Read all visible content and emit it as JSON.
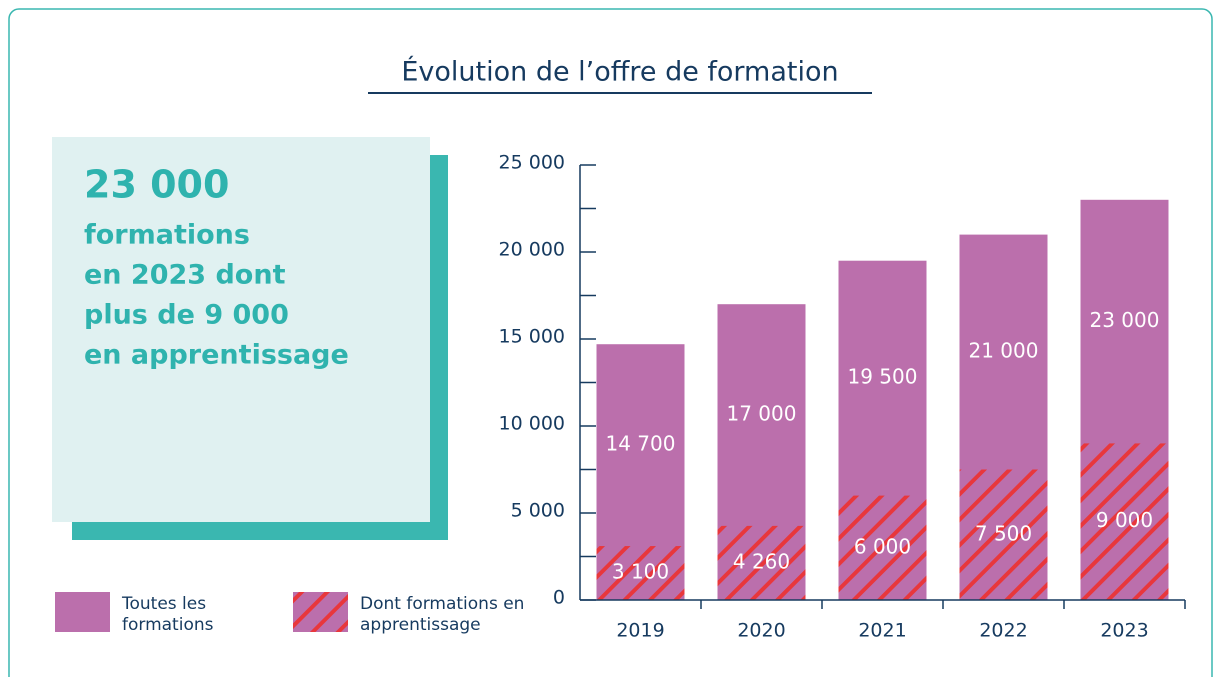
{
  "chart_data": {
    "type": "bar",
    "title": "Évolution de l’offre de formation",
    "callout": {
      "value": "23 000",
      "lines": [
        "formations",
        "en 2023 dont",
        "plus de 9 000",
        "en apprentissage"
      ]
    },
    "categories": [
      "2019",
      "2020",
      "2021",
      "2022",
      "2023"
    ],
    "series": [
      {
        "name": "Toutes les formations",
        "color": "#bb6fac",
        "values": [
          14700,
          17000,
          19500,
          21000,
          23000
        ],
        "value_labels": [
          "14 700",
          "17 000",
          "19 500",
          "21 000",
          "23 000"
        ]
      },
      {
        "name": "Dont formations en apprentissage",
        "color": "#e8373c",
        "values": [
          3100,
          4260,
          6000,
          7500,
          9000
        ],
        "value_labels": [
          "3 100",
          "4 260",
          "6 000",
          "7 500",
          "9 000"
        ]
      }
    ],
    "ylim": [
      0,
      25000
    ],
    "yticks": [
      0,
      {
        "value": 5000,
        "label": "5 000"
      },
      {
        "value": 10000,
        "label": "10 000"
      },
      {
        "value": 15000,
        "label": "15 000"
      },
      {
        "value": 20000,
        "label": "20 000"
      },
      {
        "value": 25000,
        "label": "25 000"
      }
    ],
    "yminor_ticks": [
      2500,
      7500,
      12500,
      17500,
      22500
    ]
  }
}
